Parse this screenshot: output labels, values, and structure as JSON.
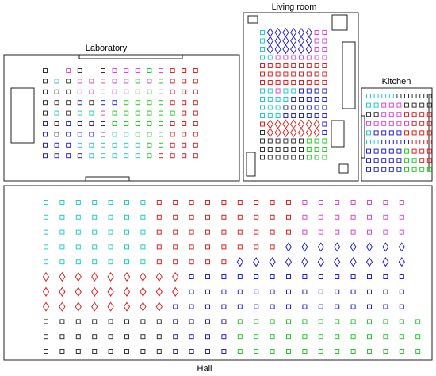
{
  "rooms": {
    "laboratory": {
      "label": "Laboratory",
      "markers": [
        "ksmkskmmmgmrrr",
        "kckmmmmmgmgrrr",
        "kkkmmmmmggrrrr",
        "kkkbkbbggggrrr",
        "kckccmggggggrr",
        "bkbbbbgggggrrr",
        "bkbbbbccgggrrr",
        "bbbccccccggrrr",
        "bbbkcccccgrrrr"
      ]
    },
    "living_room": {
      "label": "Living room",
      "markers": [
        "cBBBBBBmm",
        "cBBBBBBmm",
        "cBBBBBBmm",
        "ccmmmmmmm",
        "rrrrrrrrr",
        "rrrrrrrrr",
        "rrrrrrrrr",
        "ccmccbbbb",
        "ccccbbbbb",
        "cccbbbbbb",
        "cccbbbbbb",
        "rRRRRRRRb",
        "kRRRRRRRb",
        "kkkkkkggg",
        "kkkkkkggg",
        "kkkkkkggg"
      ]
    },
    "kitchen": {
      "label": "Kitchen",
      "markers": [
        "cccckkkkk",
        "ccmmmkkkk",
        "kkmmmrrrr",
        "mmmmmmrrr",
        "cbbbbrrrr",
        "ccbbbbrrr",
        "bbbbbgrrr",
        "bbbbbggrr",
        "bbbbbgggg"
      ]
    },
    "hall": {
      "label": "Hall",
      "markers": [
        "cccccccrrrrrrrrrmmmmmmm",
        "cccccccrrrrrrrrrmmmmmmm",
        "cccccccrrrrrrrrrmmmmmmm",
        "cccccccrrrrrrrrBBBBBBBB",
        "cccccccrrrrrBBBBBBBBBBB",
        "RRRRRRRRRbbbbbbbbbbbbbb",
        "RRRRRRRRRbbbbbbbbbbbbbb",
        "RRRRRRRRbbbbbbbbbbbbbbb",
        "kkkkkkkkbbbbgggggggggggg",
        "kkkkkkkkbbbbgggggggggggg",
        "kkkkkkkkbbbbgggggggggggg"
      ]
    }
  },
  "marker_legend": {
    "k": {
      "shape": "square",
      "color": "#333333"
    },
    "c": {
      "shape": "square",
      "color": "#22cccc"
    },
    "m": {
      "shape": "square",
      "color": "#dd44dd"
    },
    "r": {
      "shape": "square",
      "color": "#dd2222"
    },
    "g": {
      "shape": "square",
      "color": "#22cc22"
    },
    "b": {
      "shape": "square",
      "color": "#2222cc"
    },
    "B": {
      "shape": "diamond",
      "color": "#2222cc"
    },
    "R": {
      "shape": "diamond",
      "color": "#dd2222"
    },
    "s": {
      "shape": "none",
      "color": "#ffffff"
    }
  }
}
